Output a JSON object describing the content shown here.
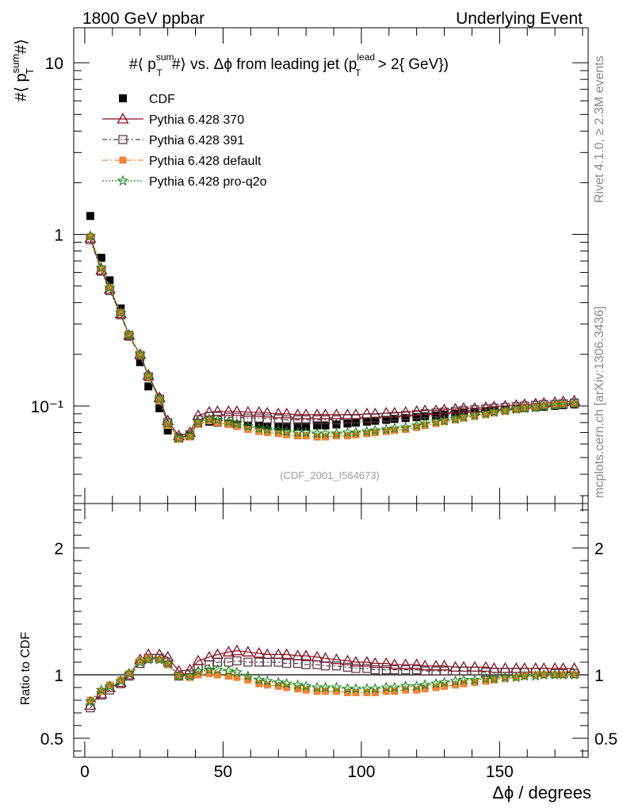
{
  "header": {
    "left": "1800 GeV ppbar",
    "right": "Underlying Event"
  },
  "side_labels": {
    "rivet": "Rivet 4.1.0, ≥ 2.3M events",
    "mcplots": "mcplots.cern.ch [arXiv:1306.3436]"
  },
  "colors": {
    "cdf": "#000000",
    "p370": "#8b0f1e",
    "p391": "#5e3a48",
    "pdefault": "#f58233",
    "pq2o": "#1a8a1a"
  },
  "chart_data": [
    {
      "type": "scatter",
      "id": "main",
      "title": "#⟨ p_T^sum #⟩ vs. Δϕ from leading jet  (p_T^lead > 2{ GeV})",
      "title_parts": {
        "prefix": "#⟨ p",
        "sup1": "sum",
        "sub1": "T",
        "middle": "#⟩ vs. Δϕ from leading jet  (p",
        "sup2": "lead",
        "sub2": "T",
        "suffix": " > 2{ GeV})"
      },
      "ylabel": "#⟨ p_T^sum #⟩",
      "ylabel_parts": {
        "prefix": "#⟨ p",
        "sup": "sum",
        "sub": "T",
        "suffix": "#⟩"
      },
      "yscale": "log",
      "ylim": [
        0.027,
        16
      ],
      "xlim": [
        -4,
        182
      ],
      "yticks": [
        {
          "value": 10,
          "label": "10"
        },
        {
          "value": 1,
          "label": "1"
        },
        {
          "value": 0.1,
          "label": "10⁻¹"
        }
      ],
      "watermark": "(CDF_2001_I564673)",
      "legend_position": "top-left",
      "legend": [
        {
          "key": "cdf",
          "label": "CDF"
        },
        {
          "key": "p370",
          "label": "Pythia 6.428 370"
        },
        {
          "key": "p391",
          "label": "Pythia 6.428 391"
        },
        {
          "key": "pdefault",
          "label": "Pythia 6.428 default"
        },
        {
          "key": "pq2o",
          "label": "Pythia 6.428 pro-q2o"
        }
      ],
      "x": [
        2,
        6,
        9,
        13,
        16,
        20,
        23,
        27,
        30,
        34,
        38,
        41,
        45,
        48,
        52,
        55,
        59,
        63,
        66,
        70,
        73,
        77,
        80,
        84,
        87,
        91,
        95,
        98,
        102,
        105,
        109,
        112,
        116,
        120,
        123,
        127,
        130,
        134,
        137,
        141,
        145,
        148,
        152,
        156,
        159,
        163,
        166,
        170,
        173,
        177
      ],
      "series": [
        {
          "key": "cdf",
          "name": "CDF",
          "values": [
            1.28,
            0.73,
            0.54,
            0.37,
            0.26,
            0.18,
            0.13,
            0.097,
            0.072,
            0.065,
            0.067,
            0.079,
            0.081,
            0.08,
            0.079,
            0.078,
            0.077,
            0.077,
            0.076,
            0.076,
            0.076,
            0.076,
            0.076,
            0.077,
            0.077,
            0.078,
            0.079,
            0.08,
            0.081,
            0.082,
            0.083,
            0.084,
            0.085,
            0.086,
            0.087,
            0.088,
            0.089,
            0.09,
            0.091,
            0.092,
            0.093,
            0.094,
            0.095,
            0.096,
            0.097,
            0.098,
            0.099,
            0.1,
            0.101,
            0.102
          ]
        },
        {
          "key": "p370",
          "name": "Pythia 6.428 370",
          "values": [
            0.95,
            0.62,
            0.48,
            0.345,
            0.258,
            0.2,
            0.151,
            0.112,
            0.082,
            0.067,
            0.07,
            0.088,
            0.092,
            0.093,
            0.093,
            0.093,
            0.092,
            0.092,
            0.091,
            0.09,
            0.09,
            0.089,
            0.089,
            0.089,
            0.089,
            0.089,
            0.089,
            0.089,
            0.09,
            0.09,
            0.091,
            0.091,
            0.092,
            0.093,
            0.094,
            0.094,
            0.095,
            0.096,
            0.097,
            0.097,
            0.098,
            0.099,
            0.1,
            0.101,
            0.102,
            0.103,
            0.104,
            0.105,
            0.106,
            0.107
          ]
        },
        {
          "key": "p391",
          "name": "Pythia 6.428 391",
          "values": [
            0.93,
            0.61,
            0.47,
            0.34,
            0.255,
            0.197,
            0.148,
            0.11,
            0.08,
            0.065,
            0.068,
            0.083,
            0.087,
            0.087,
            0.086,
            0.086,
            0.085,
            0.085,
            0.084,
            0.084,
            0.083,
            0.083,
            0.083,
            0.083,
            0.083,
            0.083,
            0.084,
            0.084,
            0.085,
            0.085,
            0.086,
            0.087,
            0.088,
            0.089,
            0.09,
            0.091,
            0.092,
            0.093,
            0.094,
            0.095,
            0.096,
            0.097,
            0.098,
            0.099,
            0.1,
            0.101,
            0.102,
            0.102,
            0.103,
            0.104
          ]
        },
        {
          "key": "pdefault",
          "name": "Pythia 6.428 default",
          "values": [
            0.97,
            0.63,
            0.49,
            0.35,
            0.26,
            0.198,
            0.148,
            0.108,
            0.077,
            0.064,
            0.066,
            0.079,
            0.082,
            0.08,
            0.078,
            0.076,
            0.073,
            0.071,
            0.07,
            0.069,
            0.068,
            0.067,
            0.067,
            0.066,
            0.066,
            0.067,
            0.067,
            0.068,
            0.069,
            0.07,
            0.071,
            0.072,
            0.073,
            0.075,
            0.077,
            0.079,
            0.081,
            0.083,
            0.085,
            0.087,
            0.089,
            0.091,
            0.093,
            0.095,
            0.097,
            0.098,
            0.1,
            0.101,
            0.102,
            0.103
          ]
        },
        {
          "key": "pq2o",
          "name": "Pythia 6.428 pro-q2o",
          "values": [
            0.98,
            0.64,
            0.49,
            0.35,
            0.26,
            0.2,
            0.15,
            0.11,
            0.079,
            0.065,
            0.067,
            0.081,
            0.084,
            0.083,
            0.081,
            0.079,
            0.076,
            0.074,
            0.073,
            0.072,
            0.071,
            0.07,
            0.07,
            0.069,
            0.069,
            0.069,
            0.07,
            0.07,
            0.071,
            0.072,
            0.073,
            0.074,
            0.075,
            0.077,
            0.079,
            0.081,
            0.082,
            0.084,
            0.086,
            0.088,
            0.09,
            0.092,
            0.094,
            0.096,
            0.097,
            0.098,
            0.1,
            0.101,
            0.102,
            0.103
          ]
        }
      ]
    },
    {
      "type": "scatter",
      "id": "ratio",
      "ylabel": "Ratio to CDF",
      "xlabel": "Δϕ / degrees",
      "ylim": [
        0.35,
        2.35
      ],
      "xlim": [
        -4,
        182
      ],
      "xticks": [
        0,
        50,
        100,
        150
      ],
      "yticks": [
        0.5,
        1,
        2
      ],
      "x": [
        2,
        6,
        9,
        13,
        16,
        20,
        23,
        27,
        30,
        34,
        38,
        41,
        45,
        48,
        52,
        55,
        59,
        63,
        66,
        70,
        73,
        77,
        80,
        84,
        87,
        91,
        95,
        98,
        102,
        105,
        109,
        112,
        116,
        120,
        123,
        127,
        130,
        134,
        137,
        141,
        145,
        148,
        152,
        156,
        159,
        163,
        166,
        170,
        173,
        177
      ],
      "series": [
        {
          "key": "p370",
          "name": "Pythia 6.428 370",
          "values": [
            0.76,
            0.85,
            0.9,
            0.94,
            1.0,
            1.12,
            1.16,
            1.16,
            1.14,
            1.03,
            1.04,
            1.11,
            1.14,
            1.16,
            1.18,
            1.19,
            1.18,
            1.17,
            1.16,
            1.16,
            1.16,
            1.15,
            1.15,
            1.14,
            1.13,
            1.12,
            1.11,
            1.1,
            1.1,
            1.09,
            1.09,
            1.08,
            1.08,
            1.08,
            1.07,
            1.07,
            1.07,
            1.06,
            1.06,
            1.06,
            1.06,
            1.05,
            1.05,
            1.05,
            1.05,
            1.05,
            1.05,
            1.05,
            1.05,
            1.05
          ]
        },
        {
          "key": "p391",
          "name": "Pythia 6.428 391",
          "values": [
            0.74,
            0.84,
            0.88,
            0.93,
            0.99,
            1.09,
            1.13,
            1.13,
            1.1,
            0.99,
            1.0,
            1.05,
            1.08,
            1.1,
            1.1,
            1.11,
            1.1,
            1.1,
            1.1,
            1.1,
            1.09,
            1.09,
            1.08,
            1.08,
            1.07,
            1.07,
            1.06,
            1.05,
            1.05,
            1.04,
            1.04,
            1.04,
            1.04,
            1.04,
            1.03,
            1.03,
            1.03,
            1.03,
            1.03,
            1.03,
            1.02,
            1.02,
            1.02,
            1.02,
            1.02,
            1.02,
            1.02,
            1.01,
            1.01,
            1.01
          ]
        },
        {
          "key": "pdefault",
          "name": "Pythia 6.428 default",
          "values": [
            0.8,
            0.87,
            0.92,
            0.96,
            1.01,
            1.11,
            1.13,
            1.12,
            1.08,
            0.99,
            0.98,
            1.0,
            1.01,
            1.0,
            0.99,
            0.98,
            0.96,
            0.93,
            0.92,
            0.91,
            0.9,
            0.89,
            0.88,
            0.87,
            0.87,
            0.87,
            0.86,
            0.86,
            0.86,
            0.86,
            0.87,
            0.87,
            0.88,
            0.88,
            0.89,
            0.9,
            0.91,
            0.92,
            0.93,
            0.94,
            0.95,
            0.96,
            0.97,
            0.98,
            0.99,
            1.0,
            1.0,
            1.0,
            1.0,
            1.0
          ]
        },
        {
          "key": "pq2o",
          "name": "Pythia 6.428 pro-q2o",
          "values": [
            0.79,
            0.88,
            0.91,
            0.95,
            1.01,
            1.1,
            1.12,
            1.12,
            1.09,
            0.99,
            0.99,
            1.03,
            1.04,
            1.04,
            1.03,
            1.02,
            0.99,
            0.96,
            0.95,
            0.94,
            0.93,
            0.92,
            0.91,
            0.9,
            0.9,
            0.9,
            0.89,
            0.89,
            0.89,
            0.89,
            0.9,
            0.9,
            0.91,
            0.91,
            0.92,
            0.93,
            0.94,
            0.95,
            0.96,
            0.96,
            0.97,
            0.97,
            0.98,
            0.98,
            0.99,
            0.99,
            1.0,
            1.0,
            1.0,
            1.0
          ]
        }
      ]
    }
  ]
}
